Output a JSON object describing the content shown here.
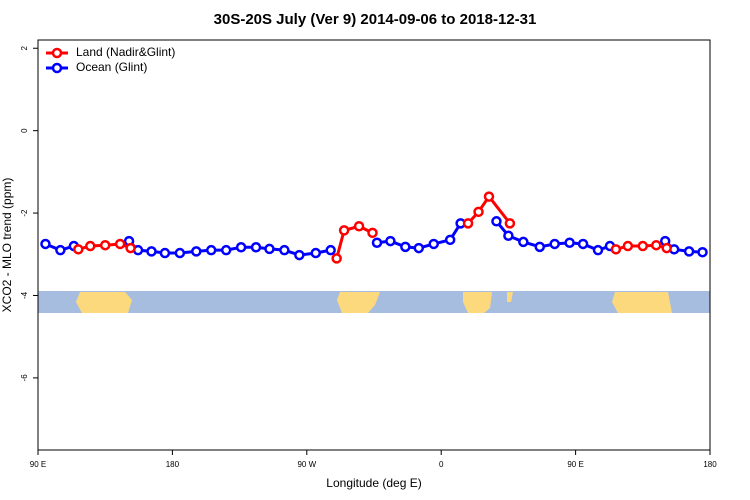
{
  "chart_data": {
    "type": "line",
    "title": "30S-20S July (Ver 9)   2014-09-06 to 2018-12-31",
    "xlabel": "Longitude (deg E)",
    "ylabel": "XCO2 - MLO trend (ppm)",
    "xlim": [
      90,
      540
    ],
    "xticks": [
      {
        "value": 90,
        "label": "90 E"
      },
      {
        "value": 180,
        "label": "180"
      },
      {
        "value": 270,
        "label": "90 W"
      },
      {
        "value": 360,
        "label": "0"
      },
      {
        "value": 450,
        "label": "90 E"
      },
      {
        "value": 540,
        "label": "180"
      }
    ],
    "ylim": [
      -7.75,
      2.2
    ],
    "yticks": [
      -6,
      -4,
      -2,
      0,
      2
    ],
    "legend": "top-left",
    "series": [
      {
        "name": "Land (Nadir&Glint)",
        "color": "#ff0000",
        "x": [
          117,
          125,
          135,
          145,
          152,
          null,
          290,
          295,
          305,
          314,
          null,
          378,
          385,
          392,
          406,
          null,
          477,
          485,
          495,
          504,
          511
        ],
        "values": [
          -2.88,
          -2.8,
          -2.78,
          -2.75,
          -2.85,
          null,
          -3.1,
          -2.42,
          -2.32,
          -2.48,
          null,
          -2.25,
          -1.97,
          -1.6,
          -2.25,
          null,
          -2.88,
          -2.8,
          -2.8,
          -2.78,
          -2.85
        ]
      },
      {
        "name": "Ocean (Glint)",
        "color": "#0000ff",
        "x": [
          95,
          105,
          114,
          null,
          151,
          157,
          166,
          175,
          185,
          196,
          206,
          216,
          226,
          236,
          245,
          255,
          265,
          276,
          286,
          null,
          317,
          326,
          336,
          345,
          355,
          366,
          373,
          null,
          397,
          405,
          415,
          426,
          436,
          446,
          455,
          465,
          473,
          null,
          510,
          516,
          526,
          535
        ],
        "values": [
          -2.75,
          -2.9,
          -2.8,
          null,
          -2.68,
          -2.9,
          -2.93,
          -2.97,
          -2.97,
          -2.93,
          -2.9,
          -2.9,
          -2.83,
          -2.83,
          -2.87,
          -2.9,
          -3.02,
          -2.97,
          -2.9,
          null,
          -2.72,
          -2.68,
          -2.82,
          -2.85,
          -2.75,
          -2.65,
          -2.25,
          null,
          -2.2,
          -2.55,
          -2.7,
          -2.82,
          -2.75,
          -2.72,
          -2.75,
          -2.9,
          -2.8,
          null,
          -2.68,
          -2.88,
          -2.93,
          -2.95
        ]
      }
    ]
  }
}
